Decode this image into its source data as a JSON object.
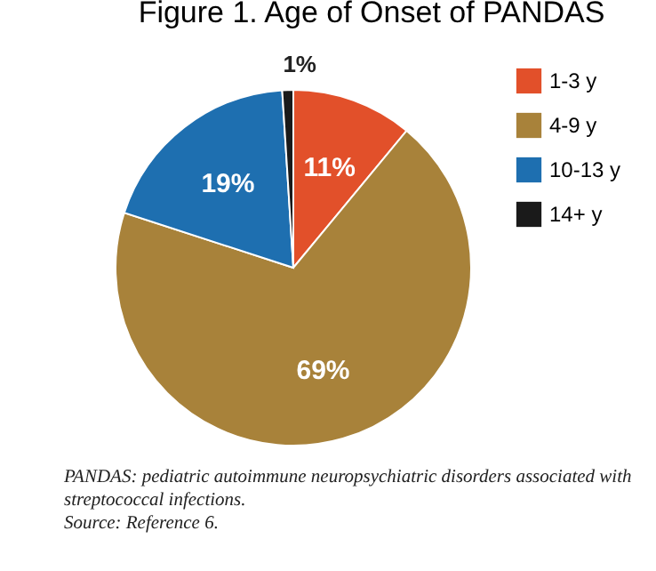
{
  "chart_data": {
    "type": "pie",
    "title": "Figure 1. Age of Onset of PANDAS",
    "categories": [
      "1-3 y",
      "4-9 y",
      "10-13 y",
      "14+ y"
    ],
    "values": [
      11,
      69,
      19,
      1
    ],
    "colors": [
      "#e2502a",
      "#a8823a",
      "#1e6fb0",
      "#1a1a1a"
    ],
    "value_labels": [
      "11%",
      "69%",
      "19%",
      "1%"
    ],
    "legend": "right",
    "annotations": [
      "PANDAS: pediatric autoimmune neuropsychiatric disorders associated with streptococcal infections.",
      "Source: Reference 6."
    ]
  }
}
